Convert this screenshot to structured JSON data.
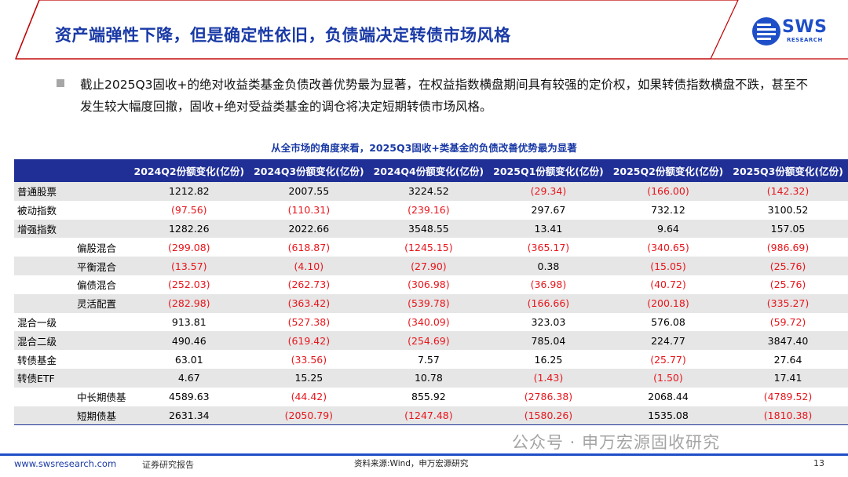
{
  "header": {
    "title": "资产端弹性下降，但是确定性依旧，负债端决定转债市场风格",
    "logo_text": "SWS",
    "logo_subtext": "RESEARCH"
  },
  "bullet": {
    "text": "截止2025Q3固收+的绝对收益类基金负债改善优势最为显著，在权益指数横盘期间具有较强的定价权，如果转债指数横盘不跌，甚至不发生较大幅度回撤，固收+绝对受益类基金的调仓将决定短期转债市场风格。"
  },
  "table": {
    "title": "从全市场的角度来看，2025Q3固收+类基金的负债改善优势最为显著",
    "columns": [
      "",
      "2024Q2份额变化(亿份)",
      "2024Q3份额变化(亿份)",
      "2024Q4份额变化(亿份)",
      "2025Q1份额变化(亿份)",
      "2025Q2份额变化(亿份)",
      "2025Q3份额变化(亿份)"
    ],
    "rows": [
      {
        "label": "普通股票",
        "sub": false,
        "cells": [
          "1212.82",
          "2007.55",
          "3224.52",
          "(29.34)",
          "(166.00)",
          "(142.32)"
        ]
      },
      {
        "label": "被动指数",
        "sub": false,
        "cells": [
          "(97.56)",
          "(110.31)",
          "(239.16)",
          "297.67",
          "732.12",
          "3100.52"
        ]
      },
      {
        "label": "增强指数",
        "sub": false,
        "cells": [
          "1282.26",
          "2022.66",
          "3548.55",
          "13.41",
          "9.64",
          "157.05"
        ]
      },
      {
        "label": "偏股混合",
        "sub": true,
        "cells": [
          "(299.08)",
          "(618.87)",
          "(1245.15)",
          "(365.17)",
          "(340.65)",
          "(986.69)"
        ]
      },
      {
        "label": "平衡混合",
        "sub": true,
        "cells": [
          "(13.57)",
          "(4.10)",
          "(27.90)",
          "0.38",
          "(15.05)",
          "(25.76)"
        ]
      },
      {
        "label": "偏债混合",
        "sub": true,
        "cells": [
          "(252.03)",
          "(262.73)",
          "(306.98)",
          "(36.98)",
          "(40.72)",
          "(25.76)"
        ]
      },
      {
        "label": "灵活配置",
        "sub": true,
        "cells": [
          "(282.98)",
          "(363.42)",
          "(539.78)",
          "(166.66)",
          "(200.18)",
          "(335.27)"
        ]
      },
      {
        "label": "混合一级",
        "sub": false,
        "cells": [
          "913.81",
          "(527.38)",
          "(340.09)",
          "323.03",
          "576.08",
          "(59.72)"
        ]
      },
      {
        "label": "混合二级",
        "sub": false,
        "cells": [
          "490.46",
          "(619.42)",
          "(254.69)",
          "785.04",
          "224.77",
          "3847.40"
        ]
      },
      {
        "label": "转债基金",
        "sub": false,
        "cells": [
          "63.01",
          "(33.56)",
          "7.57",
          "16.25",
          "(25.77)",
          "27.64"
        ]
      },
      {
        "label": "转债ETF",
        "sub": false,
        "cells": [
          "4.67",
          "15.25",
          "10.78",
          "(1.43)",
          "(1.50)",
          "17.41"
        ]
      },
      {
        "label": "中长期债基",
        "sub": true,
        "cells": [
          "4589.63",
          "(44.42)",
          "855.92",
          "(2786.38)",
          "2068.44",
          "(4789.52)"
        ]
      },
      {
        "label": "短期债基",
        "sub": true,
        "cells": [
          "2631.34",
          "(2050.79)",
          "(1247.48)",
          "(1580.26)",
          "1535.08",
          "(1810.38)"
        ]
      }
    ]
  },
  "footer": {
    "url": "www.swsresearch.com",
    "report_type": "证券研究报告",
    "source": "资料来源:Wind，申万宏源研究",
    "page": "13"
  },
  "watermark": "公众号 · 申万宏源固收研究",
  "colors": {
    "brand_blue": "#1a3aa6",
    "header_fill": "#1f2f96",
    "negative": "#e8151b",
    "accent_red": "#c00000"
  }
}
